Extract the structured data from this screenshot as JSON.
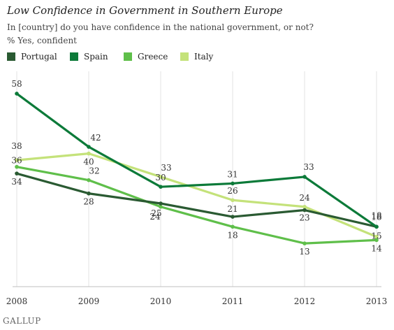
{
  "chart_data": {
    "type": "line",
    "title": "Low Confidence in Government in Southern Europe",
    "subtitle": "In [country] do you have confidence in the national government, or not?",
    "ylabel": "% Yes, confident",
    "xlabel": "",
    "x": [
      "2008",
      "2009",
      "2010",
      "2011",
      "2012",
      "2013"
    ],
    "ylim": [
      0,
      65
    ],
    "grid": "vertical",
    "legend_position": "top-left",
    "series": [
      {
        "name": "Portugal",
        "color": "#2a5a32",
        "values": [
          34,
          28,
          25,
          21,
          23,
          18
        ]
      },
      {
        "name": "Spain",
        "color": "#0c7a39",
        "values": [
          58,
          42,
          30,
          31,
          33,
          18
        ]
      },
      {
        "name": "Greece",
        "color": "#5fbf4a",
        "values": [
          36,
          32,
          24,
          18,
          13,
          14
        ]
      },
      {
        "name": "Italy",
        "color": "#c4e27a",
        "values": [
          38,
          40,
          33,
          26,
          24,
          15
        ]
      }
    ]
  },
  "footer": "GALLUP"
}
